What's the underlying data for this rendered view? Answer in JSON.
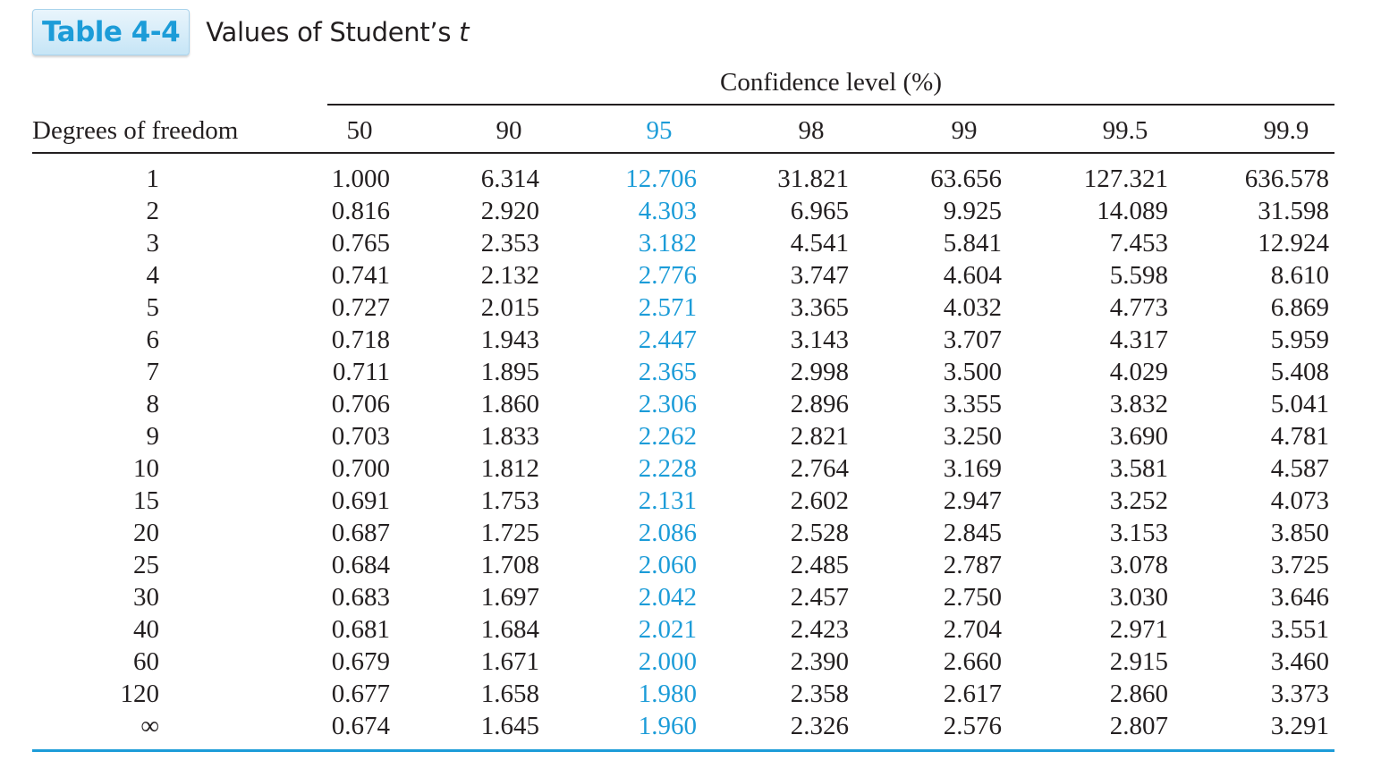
{
  "header": {
    "badge": "Table 4-4",
    "title_text": "Values of Student’s ",
    "title_italic": "t"
  },
  "table": {
    "spanner": "Confidence level (%)",
    "row_header_label": "Degrees of freedom",
    "highlight_color": "#1c9cd8",
    "rule_color": "#1c9cd8",
    "columns": [
      "50",
      "90",
      "95",
      "98",
      "99",
      "99.5",
      "99.9"
    ],
    "highlight_column_index": 2,
    "rows": [
      {
        "df": "1",
        "values": [
          "1.000",
          "6.314",
          "12.706",
          "31.821",
          "63.656",
          "127.321",
          "636.578"
        ]
      },
      {
        "df": "2",
        "values": [
          "0.816",
          "2.920",
          "4.303",
          "6.965",
          "9.925",
          "14.089",
          "31.598"
        ]
      },
      {
        "df": "3",
        "values": [
          "0.765",
          "2.353",
          "3.182",
          "4.541",
          "5.841",
          "7.453",
          "12.924"
        ]
      },
      {
        "df": "4",
        "values": [
          "0.741",
          "2.132",
          "2.776",
          "3.747",
          "4.604",
          "5.598",
          "8.610"
        ]
      },
      {
        "df": "5",
        "values": [
          "0.727",
          "2.015",
          "2.571",
          "3.365",
          "4.032",
          "4.773",
          "6.869"
        ]
      },
      {
        "df": "6",
        "values": [
          "0.718",
          "1.943",
          "2.447",
          "3.143",
          "3.707",
          "4.317",
          "5.959"
        ]
      },
      {
        "df": "7",
        "values": [
          "0.711",
          "1.895",
          "2.365",
          "2.998",
          "3.500",
          "4.029",
          "5.408"
        ]
      },
      {
        "df": "8",
        "values": [
          "0.706",
          "1.860",
          "2.306",
          "2.896",
          "3.355",
          "3.832",
          "5.041"
        ]
      },
      {
        "df": "9",
        "values": [
          "0.703",
          "1.833",
          "2.262",
          "2.821",
          "3.250",
          "3.690",
          "4.781"
        ]
      },
      {
        "df": "10",
        "values": [
          "0.700",
          "1.812",
          "2.228",
          "2.764",
          "3.169",
          "3.581",
          "4.587"
        ]
      },
      {
        "df": "15",
        "values": [
          "0.691",
          "1.753",
          "2.131",
          "2.602",
          "2.947",
          "3.252",
          "4.073"
        ]
      },
      {
        "df": "20",
        "values": [
          "0.687",
          "1.725",
          "2.086",
          "2.528",
          "2.845",
          "3.153",
          "3.850"
        ]
      },
      {
        "df": "25",
        "values": [
          "0.684",
          "1.708",
          "2.060",
          "2.485",
          "2.787",
          "3.078",
          "3.725"
        ]
      },
      {
        "df": "30",
        "values": [
          "0.683",
          "1.697",
          "2.042",
          "2.457",
          "2.750",
          "3.030",
          "3.646"
        ]
      },
      {
        "df": "40",
        "values": [
          "0.681",
          "1.684",
          "2.021",
          "2.423",
          "2.704",
          "2.971",
          "3.551"
        ]
      },
      {
        "df": "60",
        "values": [
          "0.679",
          "1.671",
          "2.000",
          "2.390",
          "2.660",
          "2.915",
          "3.460"
        ]
      },
      {
        "df": "120",
        "values": [
          "0.677",
          "1.658",
          "1.980",
          "2.358",
          "2.617",
          "2.860",
          "3.373"
        ]
      },
      {
        "df": "∞",
        "values": [
          "0.674",
          "1.645",
          "1.960",
          "2.326",
          "2.576",
          "2.807",
          "3.291"
        ]
      }
    ]
  }
}
